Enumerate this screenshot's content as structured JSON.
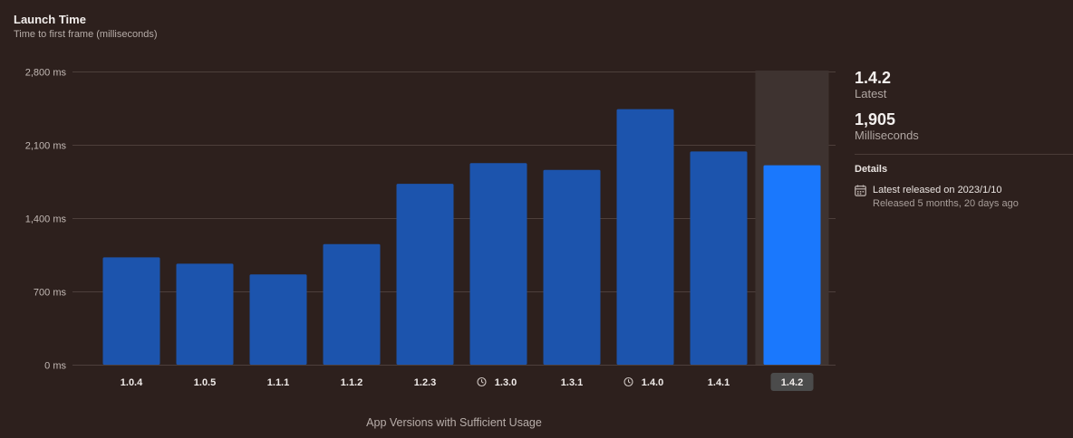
{
  "header": {
    "title": "Launch Time",
    "subtitle": "Time to first frame (milliseconds)"
  },
  "chart_data": {
    "type": "bar",
    "categories": [
      "1.0.4",
      "1.0.5",
      "1.1.1",
      "1.1.2",
      "1.2.3",
      "1.3.0",
      "1.3.1",
      "1.4.0",
      "1.4.1",
      "1.4.2"
    ],
    "category_icons": [
      "",
      "",
      "",
      "",
      "",
      "clock-icon",
      "",
      "clock-icon",
      "",
      ""
    ],
    "values": [
      1025,
      965,
      862,
      1152,
      1727,
      1925,
      1860,
      2440,
      2036,
      1905
    ],
    "ylim": [
      0,
      2800
    ],
    "yticks": [
      0,
      700,
      1400,
      2100,
      2800
    ],
    "ytick_labels": [
      "0 ms",
      "700 ms",
      "1,400 ms",
      "2,100 ms",
      "2,800 ms"
    ],
    "xlabel": "App Versions with Sufficient Usage",
    "ylabel": "",
    "grid": true,
    "highlighted_category": "1.4.2",
    "colors": {
      "bar": "#1c54ad",
      "bar_highlight": "#1a78fd",
      "grid": "#4d3f3b",
      "highlight_band": "#3e3330",
      "selected_label_bg": "#4b4b4b"
    }
  },
  "sidebar": {
    "version": "1.4.2",
    "version_caption": "Latest",
    "value": "1,905",
    "value_caption": "Milliseconds",
    "details_heading": "Details",
    "release_line": "Latest released on 2023/1/10",
    "release_age": "Released 5 months, 20 days ago"
  }
}
